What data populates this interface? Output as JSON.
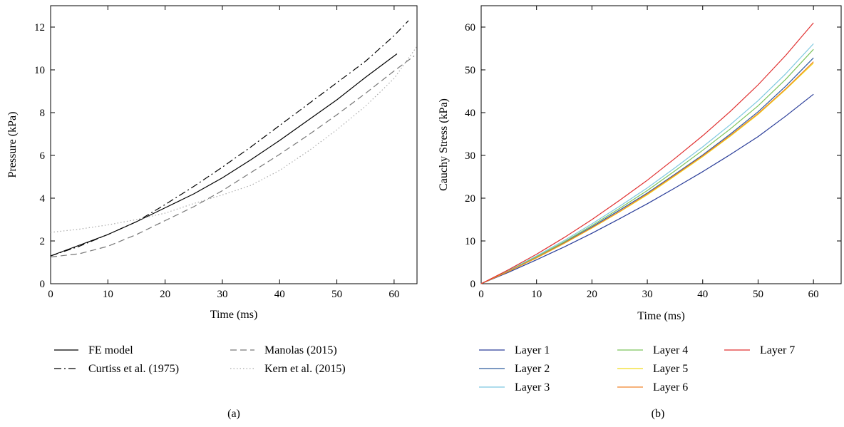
{
  "chart_data": [
    {
      "type": "line",
      "panel_label": "(a)",
      "title": "",
      "xlabel": "Time (ms)",
      "ylabel": "Pressure (kPa)",
      "xlim": [
        0,
        64
      ],
      "ylim": [
        0,
        13
      ],
      "xticks": [
        0,
        10,
        20,
        30,
        40,
        50,
        60
      ],
      "yticks": [
        0,
        2,
        4,
        6,
        8,
        10,
        12
      ],
      "grid": false,
      "legend_position": "bottom",
      "series": [
        {
          "name": "FE model",
          "color": "#000000",
          "style": "solid",
          "x": [
            0,
            5,
            10,
            15,
            20,
            25,
            30,
            35,
            40,
            45,
            50,
            55,
            60.5
          ],
          "y": [
            1.3,
            1.8,
            2.3,
            2.9,
            3.55,
            4.2,
            4.95,
            5.8,
            6.7,
            7.65,
            8.6,
            9.65,
            10.75
          ]
        },
        {
          "name": "Curtiss et al. (1975)",
          "color": "#000000",
          "style": "dashdot",
          "x": [
            0,
            5,
            10,
            15,
            20,
            25,
            30,
            35,
            40,
            45,
            50,
            55,
            60,
            62.5
          ],
          "y": [
            1.3,
            1.75,
            2.3,
            2.9,
            3.7,
            4.55,
            5.45,
            6.4,
            7.4,
            8.4,
            9.4,
            10.4,
            11.6,
            12.3
          ]
        },
        {
          "name": "Manolas (2015)",
          "color": "#777777",
          "style": "dashed",
          "x": [
            0,
            5,
            10,
            15,
            20,
            25,
            30,
            35,
            40,
            45,
            50,
            55,
            60,
            63.5
          ],
          "y": [
            1.25,
            1.4,
            1.75,
            2.3,
            2.95,
            3.6,
            4.35,
            5.2,
            6.05,
            6.95,
            7.9,
            8.9,
            9.95,
            10.65
          ]
        },
        {
          "name": "Kern et al. (2015)",
          "color": "#aaaaaa",
          "style": "dotted",
          "x": [
            0,
            5,
            10,
            15,
            20,
            25,
            30,
            35,
            40,
            45,
            50,
            55,
            60,
            64
          ],
          "y": [
            2.4,
            2.55,
            2.75,
            3.0,
            3.3,
            3.75,
            4.15,
            4.6,
            5.3,
            6.2,
            7.2,
            8.3,
            9.6,
            11.1
          ]
        }
      ]
    },
    {
      "type": "line",
      "panel_label": "(b)",
      "title": "",
      "xlabel": "Time (ms)",
      "ylabel": "Cauchy Stress (kPa)",
      "xlim": [
        0,
        65
      ],
      "ylim": [
        0,
        65
      ],
      "xticks": [
        0,
        10,
        20,
        30,
        40,
        50,
        60
      ],
      "yticks": [
        0,
        10,
        20,
        30,
        40,
        50,
        60
      ],
      "grid": false,
      "legend_position": "bottom",
      "x": [
        0,
        5,
        10,
        15,
        20,
        25,
        30,
        35,
        40,
        45,
        50,
        55,
        60
      ],
      "series": [
        {
          "name": "Layer 1",
          "color": "#2a3d99",
          "y": [
            0,
            2.7,
            5.6,
            8.6,
            11.8,
            15.2,
            18.7,
            22.4,
            26.2,
            30.2,
            34.4,
            39.2,
            44.3
          ]
        },
        {
          "name": "Layer 2",
          "color": "#2f5c9e",
          "y": [
            0,
            3.0,
            6.2,
            9.6,
            13.3,
            17.2,
            21.2,
            25.6,
            30.1,
            35.0,
            40.2,
            46.2,
            52.8
          ]
        },
        {
          "name": "Layer 3",
          "color": "#7ec8e0",
          "y": [
            0,
            3.1,
            6.5,
            10.1,
            14.0,
            18.1,
            22.4,
            27.1,
            32.0,
            37.2,
            42.8,
            49.1,
            56.1
          ]
        },
        {
          "name": "Layer 4",
          "color": "#7cc35c",
          "y": [
            0,
            3.0,
            6.3,
            9.8,
            13.6,
            17.6,
            21.8,
            26.4,
            31.2,
            36.2,
            41.6,
            47.8,
            54.8
          ]
        },
        {
          "name": "Layer 5",
          "color": "#f0dc1e",
          "y": [
            0,
            2.9,
            6.0,
            9.4,
            13.0,
            16.8,
            20.8,
            25.2,
            29.7,
            34.5,
            39.6,
            45.4,
            51.6
          ]
        },
        {
          "name": "Layer 6",
          "color": "#f0852a",
          "y": [
            0,
            2.9,
            6.1,
            9.5,
            13.1,
            16.9,
            21.0,
            25.4,
            29.9,
            34.7,
            39.8,
            45.6,
            51.9
          ]
        },
        {
          "name": "Layer 7",
          "color": "#e03030",
          "y": [
            0,
            3.3,
            6.9,
            10.8,
            15.0,
            19.5,
            24.2,
            29.3,
            34.6,
            40.3,
            46.5,
            53.4,
            61.0
          ]
        }
      ]
    }
  ]
}
